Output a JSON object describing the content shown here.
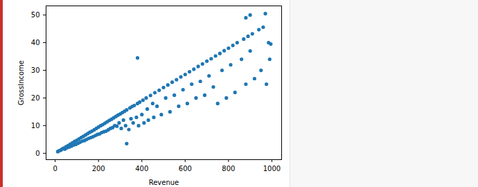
{
  "chart_data": {
    "type": "scatter",
    "color": "#1f77b4",
    "marker": "circle",
    "x_label": "Revenue",
    "y_label": "GrossIncome",
    "xlim": [
      -42,
      1045
    ],
    "ylim": [
      -2.3,
      53.3
    ],
    "xticks": [
      0,
      200,
      400,
      600,
      800,
      1000
    ],
    "yticks": [
      0,
      10,
      20,
      30,
      40,
      50
    ],
    "grid": false,
    "x": [
      12,
      18,
      25,
      30,
      35,
      40,
      45,
      50,
      55,
      60,
      65,
      70,
      75,
      80,
      85,
      90,
      95,
      100,
      105,
      110,
      115,
      120,
      125,
      130,
      135,
      140,
      145,
      150,
      155,
      160,
      165,
      170,
      175,
      180,
      185,
      190,
      195,
      200,
      205,
      210,
      215,
      220,
      225,
      230,
      235,
      240,
      245,
      250,
      255,
      260,
      265,
      270,
      275,
      280,
      285,
      290,
      295,
      300,
      305,
      310,
      315,
      320,
      325,
      330,
      330,
      340,
      345,
      350,
      355,
      360,
      365,
      375,
      380,
      380,
      385,
      390,
      400,
      405,
      410,
      420,
      425,
      430,
      440,
      450,
      455,
      460,
      470,
      480,
      490,
      500,
      510,
      520,
      530,
      540,
      550,
      560,
      570,
      580,
      590,
      600,
      610,
      620,
      630,
      640,
      650,
      660,
      670,
      680,
      690,
      700,
      710,
      720,
      730,
      740,
      750,
      760,
      770,
      780,
      790,
      800,
      810,
      820,
      830,
      840,
      860,
      870,
      880,
      880,
      890,
      900,
      900,
      910,
      920,
      940,
      950,
      960,
      970,
      975,
      985,
      990,
      995
    ],
    "values": [
      0.6,
      0.9,
      1.1,
      1.4,
      1.7,
      1.9,
      1.5,
      2.4,
      2.0,
      2.8,
      2.3,
      3.3,
      2.6,
      3.8,
      3.0,
      4.3,
      3.2,
      4.7,
      3.6,
      5.2,
      4.0,
      5.7,
      4.4,
      6.1,
      4.6,
      6.6,
      5.0,
      7.1,
      5.4,
      7.6,
      5.7,
      8.0,
      6.0,
      8.5,
      6.4,
      9.0,
      6.8,
      9.5,
      7.0,
      10.0,
      7.5,
      10.4,
      7.8,
      10.9,
      8.0,
      11.4,
      8.5,
      11.9,
      9.0,
      12.3,
      9.3,
      12.8,
      10.0,
      13.3,
      9.8,
      13.8,
      11.0,
      14.2,
      9.0,
      14.7,
      12.0,
      15.2,
      10.0,
      15.7,
      3.5,
      8.6,
      16.4,
      12.5,
      16.9,
      11.0,
      17.3,
      13.0,
      18.0,
      34.5,
      10.0,
      18.5,
      14.0,
      19.2,
      11.0,
      20.0,
      16.0,
      12.0,
      20.9,
      18.0,
      13.0,
      21.9,
      17.0,
      22.8,
      14.0,
      23.8,
      20.0,
      24.7,
      15.0,
      25.7,
      21.0,
      26.6,
      17.0,
      27.6,
      23.0,
      28.5,
      18.0,
      29.5,
      25.0,
      30.4,
      20.0,
      31.4,
      26.0,
      32.3,
      21.0,
      33.3,
      28.0,
      34.2,
      24.0,
      35.2,
      18.0,
      36.1,
      30.0,
      37.1,
      20.0,
      38.0,
      32.0,
      39.0,
      22.0,
      40.0,
      34.0,
      41.3,
      25.0,
      49.0,
      42.3,
      37.0,
      50.0,
      43.2,
      27.0,
      44.7,
      30.0,
      45.6,
      50.5,
      25.0,
      40.0,
      34.0,
      39.5
    ]
  }
}
